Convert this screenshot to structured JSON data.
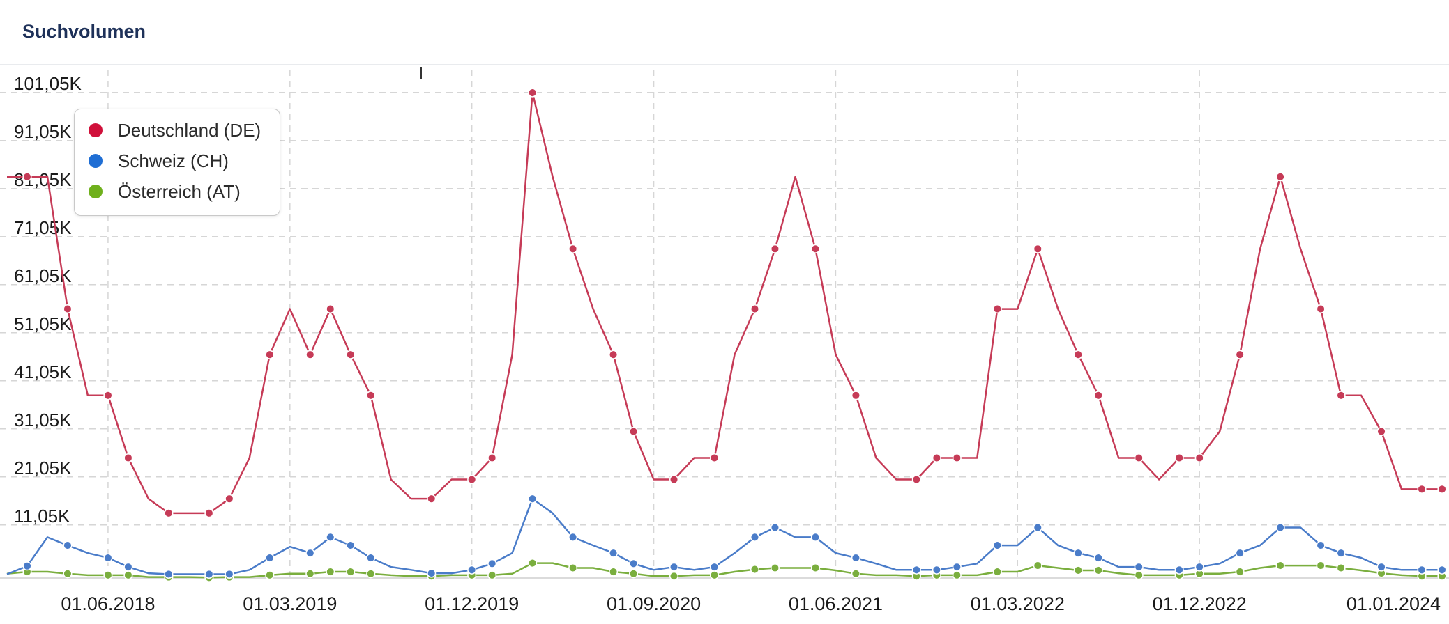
{
  "panel": {
    "title": "Suchvolumen"
  },
  "chart_data": {
    "type": "line",
    "title": "",
    "xlabel": "",
    "ylabel": "",
    "ylim": [
      0,
      103000
    ],
    "y_ticks": [
      11050,
      21050,
      31050,
      41050,
      51050,
      61050,
      71050,
      81050,
      91050,
      101050
    ],
    "y_tick_labels": [
      "11,05K",
      "21,05K",
      "31,05K",
      "41,05K",
      "51,05K",
      "61,05K",
      "71,05K",
      "81,05K",
      "91,05K",
      "101,05K"
    ],
    "x_start": "01.01.2018",
    "x_ticks": [
      5,
      14,
      23,
      32,
      41,
      50,
      59,
      72
    ],
    "x_tick_labels": [
      "01.06.2018",
      "01.03.2019",
      "01.12.2019",
      "01.09.2020",
      "01.06.2021",
      "01.03.2022",
      "01.12.2022",
      "01.01.2024"
    ],
    "grid": true,
    "legend_position": "top-left",
    "series": [
      {
        "name": "Deutschland (DE)",
        "color": "#c63b57",
        "values": [
          83500,
          83500,
          83500,
          56000,
          38000,
          38000,
          25000,
          16500,
          13500,
          13500,
          13500,
          16500,
          25000,
          46500,
          56000,
          46500,
          56000,
          46500,
          38000,
          20500,
          16500,
          16500,
          20500,
          20500,
          25000,
          46500,
          101000,
          83500,
          68500,
          56000,
          46500,
          30500,
          20500,
          20500,
          25000,
          25000,
          46500,
          56000,
          68500,
          83500,
          68500,
          46500,
          38000,
          25000,
          20500,
          20500,
          25000,
          25000,
          25000,
          56000,
          56000,
          68500,
          56000,
          46500,
          38000,
          25000,
          25000,
          20500,
          25000,
          25000,
          30500,
          46500,
          68500,
          83500,
          68500,
          56000,
          38000,
          38000,
          30500,
          18500,
          18500,
          18500
        ]
      },
      {
        "name": "Schweiz (CH)",
        "color": "#4a7cc9",
        "values": [
          800,
          2500,
          8500,
          6800,
          5200,
          4200,
          2300,
          1000,
          800,
          800,
          800,
          800,
          1700,
          4200,
          6500,
          5200,
          8500,
          6800,
          4200,
          2300,
          1700,
          1000,
          1000,
          1700,
          3000,
          5200,
          16500,
          13500,
          8500,
          6800,
          5200,
          3000,
          1700,
          2300,
          1700,
          2300,
          5200,
          8500,
          10500,
          8500,
          8500,
          5200,
          4200,
          3000,
          1700,
          1700,
          1700,
          2300,
          3000,
          6800,
          6800,
          10500,
          6800,
          5200,
          4200,
          2300,
          2300,
          1700,
          1700,
          2300,
          3000,
          5200,
          6800,
          10500,
          10500,
          6800,
          5200,
          4200,
          2300,
          1700,
          1700,
          1700
        ]
      },
      {
        "name": "Österreich (AT)",
        "color": "#7aae3e",
        "values": [
          900,
          1300,
          1300,
          900,
          600,
          600,
          600,
          200,
          200,
          200,
          100,
          200,
          200,
          600,
          900,
          900,
          1300,
          1300,
          900,
          600,
          400,
          400,
          600,
          600,
          600,
          900,
          3100,
          3100,
          2100,
          2100,
          1300,
          900,
          400,
          400,
          600,
          600,
          1300,
          1800,
          2100,
          2100,
          2100,
          1600,
          900,
          600,
          600,
          400,
          600,
          600,
          600,
          1300,
          1300,
          2600,
          2100,
          1600,
          1600,
          1000,
          600,
          600,
          600,
          900,
          900,
          1300,
          2100,
          2600,
          2600,
          2600,
          2100,
          1600,
          1000,
          600,
          400,
          400
        ]
      }
    ],
    "markers": [
      [
        1,
        3,
        5,
        6,
        8,
        10,
        11,
        13,
        15,
        16,
        17,
        18,
        21,
        23,
        24,
        26,
        28,
        30,
        31,
        33,
        35,
        37,
        38,
        40,
        42,
        45,
        46,
        47,
        49,
        51,
        53,
        54,
        56,
        58,
        59,
        61,
        63,
        65,
        66,
        68,
        70,
        71
      ],
      [
        1,
        3,
        5,
        6,
        8,
        10,
        11,
        13,
        15,
        16,
        17,
        18,
        21,
        23,
        24,
        26,
        28,
        30,
        31,
        33,
        35,
        37,
        38,
        40,
        42,
        45,
        46,
        47,
        49,
        51,
        53,
        54,
        56,
        58,
        59,
        61,
        63,
        65,
        66,
        68,
        70,
        71
      ],
      [
        1,
        3,
        5,
        6,
        8,
        10,
        11,
        13,
        15,
        16,
        17,
        18,
        21,
        23,
        24,
        26,
        28,
        30,
        31,
        33,
        35,
        37,
        38,
        40,
        42,
        45,
        46,
        47,
        49,
        51,
        53,
        54,
        56,
        58,
        59,
        61,
        63,
        65,
        66,
        68,
        70,
        71
      ]
    ]
  }
}
